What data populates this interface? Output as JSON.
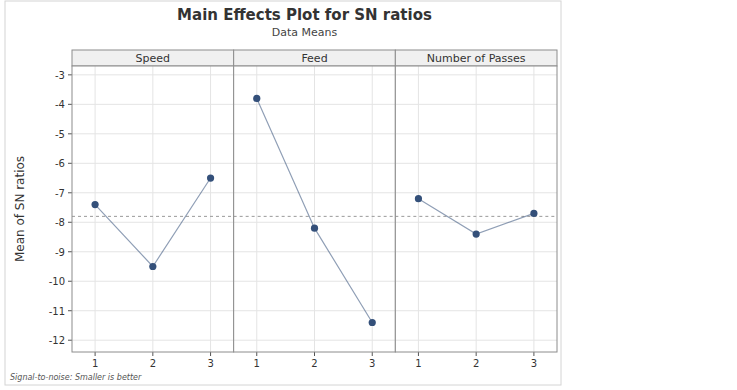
{
  "chart_data": {
    "type": "line",
    "title": "Main Effects Plot for SN ratios",
    "subtitle": "Data Means",
    "y_label": "Mean of SN ratios",
    "caption": "Signal-to-noise: Smaller is better",
    "series": [
      {
        "name": "Speed",
        "x": [
          1,
          2,
          3
        ],
        "values": [
          -7.4,
          -9.5,
          -6.5
        ],
        "color": "#34507a"
      },
      {
        "name": "Feed",
        "x": [
          1,
          2,
          3
        ],
        "values": [
          -3.8,
          -8.2,
          -11.4
        ],
        "color": "#34507a"
      },
      {
        "name": "Number of Passes",
        "x": [
          1,
          2,
          3
        ],
        "values": [
          -7.2,
          -8.4,
          -7.7
        ],
        "color": "#34507a"
      }
    ],
    "mean": -7.8,
    "xlim": [
      0.6,
      3.4
    ],
    "xticks": [
      1,
      2,
      3
    ],
    "ylim": [
      -12.4,
      -2.7
    ],
    "yticks": [
      -12,
      -11,
      -10,
      -9,
      -8,
      -7,
      -6,
      -5,
      -4,
      -3
    ],
    "grid": true,
    "marker": "circle",
    "line_style": "solid"
  }
}
